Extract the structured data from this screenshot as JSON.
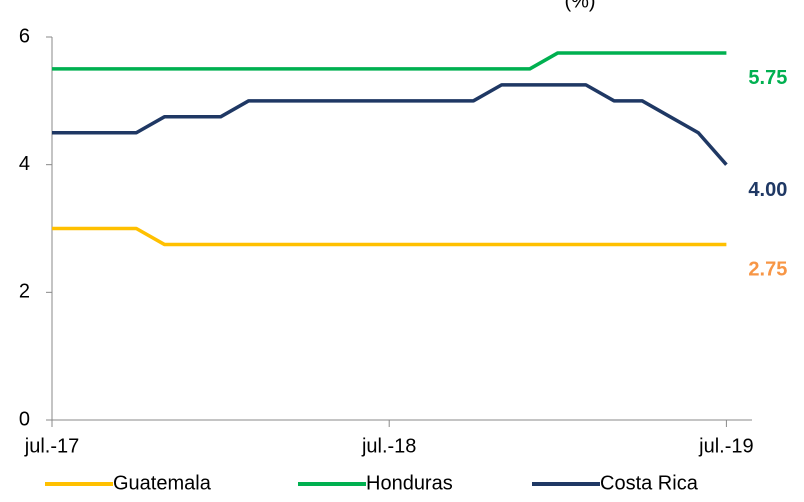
{
  "chart_data": {
    "type": "line",
    "title": "(%)",
    "categories": [
      "jul.-17",
      null,
      null,
      null,
      null,
      null,
      null,
      null,
      null,
      null,
      null,
      null,
      "jul.-18",
      null,
      null,
      null,
      null,
      null,
      null,
      null,
      null,
      null,
      null,
      null,
      "jul.-19"
    ],
    "series": [
      {
        "name": "Guatemala",
        "color": "#ffc000",
        "label_color": "#f79646",
        "values": [
          3,
          3,
          3,
          3,
          2.75,
          2.75,
          2.75,
          2.75,
          2.75,
          2.75,
          2.75,
          2.75,
          2.75,
          2.75,
          2.75,
          2.75,
          2.75,
          2.75,
          2.75,
          2.75,
          2.75,
          2.75,
          2.75,
          2.75,
          2.75
        ],
        "value_labels": [
          null,
          null,
          null,
          null,
          null,
          null,
          null,
          null,
          null,
          null,
          null,
          null,
          null,
          null,
          null,
          null,
          null,
          null,
          null,
          null,
          null,
          null,
          null,
          null,
          "2.75"
        ]
      },
      {
        "name": "Honduras",
        "color": "#00b050",
        "label_color": "#00b050",
        "values": [
          5.5,
          5.5,
          5.5,
          5.5,
          5.5,
          5.5,
          5.5,
          5.5,
          5.5,
          5.5,
          5.5,
          5.5,
          5.5,
          5.5,
          5.5,
          5.5,
          5.5,
          5.5,
          5.75,
          5.75,
          5.75,
          5.75,
          5.75,
          5.75,
          5.75
        ],
        "value_labels": [
          null,
          null,
          null,
          null,
          null,
          null,
          null,
          null,
          null,
          null,
          null,
          null,
          null,
          null,
          null,
          null,
          null,
          null,
          null,
          null,
          null,
          null,
          null,
          null,
          "5.75"
        ]
      },
      {
        "name": "Costa Rica",
        "color": "#1f3864",
        "label_color": "#1f3864",
        "values": [
          4.5,
          4.5,
          4.5,
          4.5,
          4.75,
          4.75,
          4.75,
          5,
          5,
          5,
          5,
          5,
          5,
          5,
          5,
          5,
          5.25,
          5.25,
          5.25,
          5.25,
          5,
          5,
          4.75,
          4.5,
          4
        ],
        "value_labels": [
          null,
          null,
          null,
          null,
          null,
          null,
          null,
          null,
          null,
          null,
          null,
          null,
          null,
          null,
          null,
          null,
          null,
          null,
          null,
          null,
          null,
          null,
          null,
          null,
          "4.00"
        ]
      }
    ],
    "ylim": [
      0,
      6
    ],
    "yticks": [
      0,
      2,
      4,
      6
    ],
    "grid": false
  }
}
